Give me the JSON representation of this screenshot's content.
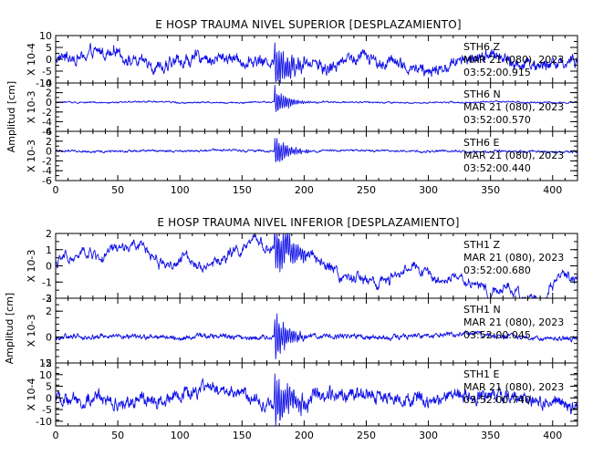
{
  "chart_data": [
    {
      "type": "line",
      "title": "E HOSP TRAUMA NIVEL SUPERIOR [DESPLAZAMIENTO]",
      "ylabel": "Amplitud [cm]",
      "xlim": [
        0,
        420
      ],
      "xticks": [
        0,
        50,
        100,
        150,
        200,
        250,
        300,
        350,
        400
      ],
      "panels": [
        {
          "station": "STH6",
          "component": "Z",
          "date": "MAR 21 (080), 2023",
          "time": "03:52:00.915",
          "scale_label": "X 10-4",
          "ylim": [
            -10,
            10
          ],
          "yticks": [
            10,
            5,
            0,
            -5,
            -10
          ],
          "shape": "mid",
          "amp": 4,
          "burst": 9.5
        },
        {
          "station": "STH6",
          "component": "N",
          "date": "MAR 21 (080), 2023",
          "time": "03:52:00.570",
          "scale_label": "X 10-3",
          "ylim": [
            -6,
            4
          ],
          "yticks": [
            4,
            2,
            0,
            -2,
            -4,
            -6
          ],
          "shape": "quiet",
          "amp": 0.25,
          "burst": 3.5
        },
        {
          "station": "STH6",
          "component": "E",
          "date": "MAR 21 (080), 2023",
          "time": "03:52:00.440",
          "scale_label": "X 10-3",
          "ylim": [
            -6,
            4
          ],
          "yticks": [
            4,
            2,
            0,
            -2,
            -4,
            -6
          ],
          "shape": "quiet",
          "amp": 0.35,
          "burst": 4
        }
      ]
    },
    {
      "type": "line",
      "title": "E HOSP TRAUMA NIVEL INFERIOR [DESPLAZAMIENTO]",
      "ylabel": "Amplitud [cm]",
      "xlim": [
        0,
        420
      ],
      "xticks": [
        0,
        50,
        100,
        150,
        200,
        250,
        300,
        350,
        400
      ],
      "panels": [
        {
          "station": "STH1",
          "component": "Z",
          "date": "MAR 21 (080), 2023",
          "time": "03:52:00.680",
          "scale_label": "X 10-3",
          "ylim": [
            -2,
            2
          ],
          "yticks": [
            2,
            1,
            0,
            -1,
            -2
          ],
          "shape": "wave",
          "amp": 0.35,
          "burst": 1.8
        },
        {
          "station": "STH1",
          "component": "N",
          "date": "MAR 21 (080), 2023",
          "time": "03:52:00.045",
          "scale_label": "X 10-3",
          "ylim": [
            -2,
            3
          ],
          "yticks": [
            3,
            2,
            0,
            -2
          ],
          "shape": "quiet",
          "amp": 0.3,
          "burst": 2.2
        },
        {
          "station": "STH1",
          "component": "E",
          "date": "MAR 21 (080), 2023",
          "time": "03:52:00.740",
          "scale_label": "X 10-4",
          "ylim": [
            -12,
            15
          ],
          "yticks": [
            15,
            10,
            5,
            0,
            -5,
            -10
          ],
          "shape": "mid",
          "amp": 4.5,
          "burst": 12
        }
      ]
    }
  ]
}
